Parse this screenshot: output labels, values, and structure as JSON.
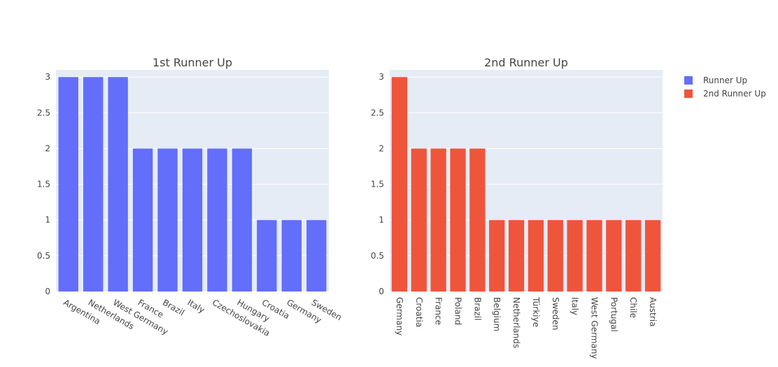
{
  "chart_data": [
    {
      "type": "bar",
      "title": "1st Runner Up",
      "xlabel": "",
      "ylabel": "",
      "ylim": [
        0,
        3.1
      ],
      "yticks": [
        "0",
        "0.5",
        "1",
        "1.5",
        "2",
        "2.5",
        "3"
      ],
      "categories": [
        "Argentina",
        "Netherlands",
        "West Germany",
        "France",
        "Brazil",
        "Italy",
        "Czechoslovakia",
        "Hungary",
        "Croatia",
        "Germany",
        "Sweden"
      ],
      "series": [
        {
          "name": "Runner Up",
          "color": "#636efa",
          "values": [
            3,
            3,
            3,
            2,
            2,
            2,
            2,
            2,
            1,
            1,
            1
          ]
        }
      ],
      "grid": true,
      "xtick_rotation": "tilted"
    },
    {
      "type": "bar",
      "title": "2nd Runner Up",
      "xlabel": "",
      "ylabel": "",
      "ylim": [
        0,
        3.1
      ],
      "yticks": [
        "0",
        "0.5",
        "1",
        "1.5",
        "2",
        "2.5",
        "3"
      ],
      "categories": [
        "Germany",
        "Croatia",
        "France",
        "Poland",
        "Brazil",
        "Belgium",
        "Netherlands",
        "Türkiye",
        "Sweden",
        "Italy",
        "West Germany",
        "Portugal",
        "Chile",
        "Austria"
      ],
      "series": [
        {
          "name": "2nd Runner Up",
          "color": "#ef553b",
          "values": [
            3,
            2,
            2,
            2,
            2,
            1,
            1,
            1,
            1,
            1,
            1,
            1,
            1,
            1
          ]
        }
      ],
      "grid": true,
      "xtick_rotation": "vertical"
    }
  ],
  "legend": {
    "placement": "top-right",
    "items": [
      {
        "label": "Runner Up",
        "color": "#636efa"
      },
      {
        "label": "2nd Runner Up",
        "color": "#ef553b"
      }
    ]
  },
  "style": {
    "plot_background": "#e5ecf6",
    "grid_color": "#ffffff"
  }
}
